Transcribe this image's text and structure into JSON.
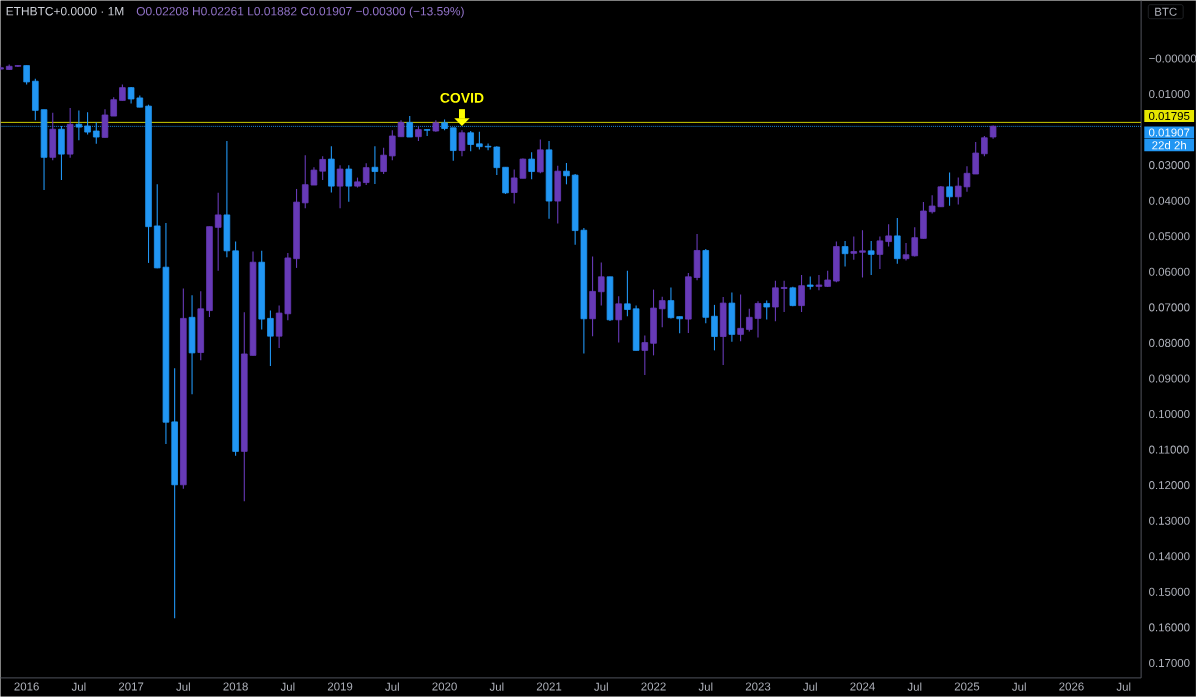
{
  "chart_data": {
    "type": "candlestick",
    "title": "ETHBTC+0.0000 · 1M",
    "subtitle": "O0.02208 H0.02261 L0.01882 C0.01907 −0.00300 (−13.59%)",
    "ylabel": "BTC",
    "x": [
      "2015-10",
      "2015-11",
      "2015-12",
      "2016-01",
      "2016-02",
      "2016-03",
      "2016-04",
      "2016-05",
      "2016-06",
      "2016-07",
      "2016-08",
      "2016-09",
      "2016-10",
      "2016-11",
      "2016-12",
      "2017-01",
      "2017-02",
      "2017-03",
      "2017-04",
      "2017-05",
      "2017-06",
      "2017-07",
      "2017-08",
      "2017-09",
      "2017-10",
      "2017-11",
      "2017-12",
      "2018-01",
      "2018-02",
      "2018-03",
      "2018-04",
      "2018-05",
      "2018-06",
      "2018-07",
      "2018-08",
      "2018-09",
      "2018-10",
      "2018-11",
      "2018-12",
      "2019-01",
      "2019-02",
      "2019-03",
      "2019-04",
      "2019-05",
      "2019-06",
      "2019-07",
      "2019-08",
      "2019-09",
      "2019-10",
      "2019-11",
      "2019-12",
      "2020-01",
      "2020-02",
      "2020-03",
      "2020-04",
      "2020-05",
      "2020-06",
      "2020-07",
      "2020-08",
      "2020-09",
      "2020-10",
      "2020-11",
      "2020-12",
      "2021-01",
      "2021-02",
      "2021-03",
      "2021-04",
      "2021-05",
      "2021-06",
      "2021-07",
      "2021-08",
      "2021-09",
      "2021-10",
      "2021-11",
      "2021-12",
      "2022-01",
      "2022-02",
      "2022-03",
      "2022-04",
      "2022-05",
      "2022-06",
      "2022-07",
      "2022-08",
      "2022-09",
      "2022-10",
      "2022-11",
      "2022-12",
      "2023-01",
      "2023-02",
      "2023-03",
      "2023-04",
      "2023-05",
      "2023-06",
      "2023-07",
      "2023-08",
      "2023-09",
      "2023-10",
      "2023-11",
      "2023-12",
      "2024-01",
      "2024-02",
      "2024-03",
      "2024-04",
      "2024-05",
      "2024-06",
      "2024-07",
      "2024-08",
      "2024-09",
      "2024-10",
      "2024-11",
      "2024-12",
      "2025-01",
      "2025-02",
      "2025-03",
      "2025-04"
    ],
    "ohlc": [
      [
        0.003,
        0.0034,
        0.0019,
        0.0026
      ],
      [
        0.0031,
        0.0032,
        0.0017,
        0.0022
      ],
      [
        0.0022,
        0.0024,
        0.0019,
        0.002
      ],
      [
        0.002,
        0.0073,
        0.002,
        0.0066
      ],
      [
        0.0064,
        0.0174,
        0.0057,
        0.0146
      ],
      [
        0.0144,
        0.037,
        0.0144,
        0.0278
      ],
      [
        0.0278,
        0.0286,
        0.0153,
        0.0199
      ],
      [
        0.0199,
        0.0342,
        0.019,
        0.0269
      ],
      [
        0.0269,
        0.0279,
        0.0139,
        0.0185
      ],
      [
        0.0185,
        0.023,
        0.0146,
        0.0193
      ],
      [
        0.019,
        0.0214,
        0.0151,
        0.0207
      ],
      [
        0.0204,
        0.024,
        0.018,
        0.0221
      ],
      [
        0.0222,
        0.0222,
        0.0143,
        0.0159
      ],
      [
        0.0162,
        0.0162,
        0.0109,
        0.0116
      ],
      [
        0.0118,
        0.0118,
        0.0073,
        0.0082
      ],
      [
        0.0082,
        0.0127,
        0.008,
        0.0114
      ],
      [
        0.0111,
        0.0137,
        0.0104,
        0.0137
      ],
      [
        0.0134,
        0.0575,
        0.013,
        0.0473
      ],
      [
        0.0471,
        0.059,
        0.0354,
        0.0589
      ],
      [
        0.0587,
        0.1084,
        0.0463,
        0.1023
      ],
      [
        0.1022,
        0.1574,
        0.0871,
        0.1199
      ],
      [
        0.1199,
        0.121,
        0.0647,
        0.0731
      ],
      [
        0.0728,
        0.0944,
        0.0666,
        0.0828
      ],
      [
        0.0827,
        0.0849,
        0.0655,
        0.0704
      ],
      [
        0.0709,
        0.0727,
        0.0473,
        0.0473
      ],
      [
        0.0475,
        0.0597,
        0.0378,
        0.044
      ],
      [
        0.044,
        0.0559,
        0.0232,
        0.0541
      ],
      [
        0.0541,
        0.1117,
        0.0515,
        0.1105
      ],
      [
        0.1105,
        0.1245,
        0.0714,
        0.0831
      ],
      [
        0.0835,
        0.0835,
        0.0543,
        0.0573
      ],
      [
        0.0573,
        0.0762,
        0.0541,
        0.0733
      ],
      [
        0.0731,
        0.0865,
        0.0709,
        0.0781
      ],
      [
        0.0781,
        0.0814,
        0.0695,
        0.0716
      ],
      [
        0.0718,
        0.0736,
        0.0547,
        0.0561
      ],
      [
        0.0563,
        0.0589,
        0.0367,
        0.0404
      ],
      [
        0.0406,
        0.0421,
        0.0272,
        0.0355
      ],
      [
        0.0356,
        0.0356,
        0.0306,
        0.0314
      ],
      [
        0.0317,
        0.0342,
        0.0275,
        0.0284
      ],
      [
        0.0283,
        0.0377,
        0.0247,
        0.0359
      ],
      [
        0.0359,
        0.0421,
        0.03,
        0.0311
      ],
      [
        0.0311,
        0.0403,
        0.03,
        0.0359
      ],
      [
        0.0359,
        0.0363,
        0.0335,
        0.0347
      ],
      [
        0.0349,
        0.0356,
        0.0295,
        0.0307
      ],
      [
        0.0306,
        0.0353,
        0.0247,
        0.0318
      ],
      [
        0.0318,
        0.0325,
        0.0251,
        0.0272
      ],
      [
        0.0274,
        0.0286,
        0.0202,
        0.0218
      ],
      [
        0.022,
        0.022,
        0.0174,
        0.018
      ],
      [
        0.018,
        0.0221,
        0.0162,
        0.0221
      ],
      [
        0.022,
        0.0232,
        0.0192,
        0.02
      ],
      [
        0.02,
        0.0218,
        0.02,
        0.0202
      ],
      [
        0.0204,
        0.0206,
        0.0174,
        0.0181
      ],
      [
        0.0181,
        0.0202,
        0.0172,
        0.0197
      ],
      [
        0.0195,
        0.0288,
        0.0195,
        0.0259
      ],
      [
        0.0259,
        0.0275,
        0.0202,
        0.0209
      ],
      [
        0.0209,
        0.0261,
        0.0204,
        0.0242
      ],
      [
        0.024,
        0.0256,
        0.0206,
        0.0248
      ],
      [
        0.0247,
        0.0258,
        0.0239,
        0.0249
      ],
      [
        0.0249,
        0.0328,
        0.0247,
        0.0307
      ],
      [
        0.0306,
        0.0381,
        0.0306,
        0.0378
      ],
      [
        0.0377,
        0.0408,
        0.0312,
        0.0336
      ],
      [
        0.0337,
        0.0337,
        0.0281,
        0.0283
      ],
      [
        0.0283,
        0.034,
        0.0264,
        0.0318
      ],
      [
        0.0319,
        0.0323,
        0.0228,
        0.0257
      ],
      [
        0.0257,
        0.0451,
        0.0232,
        0.0401
      ],
      [
        0.0401,
        0.0464,
        0.0302,
        0.0317
      ],
      [
        0.0317,
        0.0354,
        0.0294,
        0.033
      ],
      [
        0.0328,
        0.0524,
        0.0325,
        0.0484
      ],
      [
        0.0483,
        0.083,
        0.0477,
        0.0732
      ],
      [
        0.0732,
        0.0781,
        0.0557,
        0.0655
      ],
      [
        0.0656,
        0.0695,
        0.0574,
        0.0614
      ],
      [
        0.0614,
        0.0738,
        0.0614,
        0.0735
      ],
      [
        0.0735,
        0.0799,
        0.0669,
        0.069
      ],
      [
        0.069,
        0.0725,
        0.0597,
        0.0706
      ],
      [
        0.0704,
        0.0821,
        0.0695,
        0.0821
      ],
      [
        0.0821,
        0.089,
        0.0779,
        0.0799
      ],
      [
        0.0801,
        0.0835,
        0.065,
        0.0702
      ],
      [
        0.0704,
        0.0756,
        0.067,
        0.0681
      ],
      [
        0.0681,
        0.0731,
        0.0644,
        0.0729
      ],
      [
        0.0726,
        0.0773,
        0.0726,
        0.0732
      ],
      [
        0.0733,
        0.0772,
        0.0603,
        0.0614
      ],
      [
        0.0616,
        0.0624,
        0.0494,
        0.054
      ],
      [
        0.054,
        0.0745,
        0.0536,
        0.0728
      ],
      [
        0.0725,
        0.0821,
        0.0693,
        0.0782
      ],
      [
        0.0782,
        0.0862,
        0.0671,
        0.0688
      ],
      [
        0.0688,
        0.0797,
        0.0658,
        0.0776
      ],
      [
        0.0776,
        0.0795,
        0.0664,
        0.0759
      ],
      [
        0.0762,
        0.0768,
        0.0704,
        0.0728
      ],
      [
        0.0731,
        0.0785,
        0.0683,
        0.0689
      ],
      [
        0.0689,
        0.0734,
        0.0681,
        0.0699
      ],
      [
        0.0699,
        0.0739,
        0.0625,
        0.0645
      ],
      [
        0.0647,
        0.0713,
        0.0625,
        0.0644
      ],
      [
        0.0645,
        0.0697,
        0.0642,
        0.0695
      ],
      [
        0.0695,
        0.0713,
        0.0609,
        0.0639
      ],
      [
        0.0637,
        0.065,
        0.0613,
        0.0641
      ],
      [
        0.0641,
        0.0652,
        0.0609,
        0.0637
      ],
      [
        0.0641,
        0.0643,
        0.0597,
        0.0623
      ],
      [
        0.0626,
        0.0629,
        0.0515,
        0.0529
      ],
      [
        0.0529,
        0.0585,
        0.0513,
        0.0549
      ],
      [
        0.0548,
        0.0566,
        0.0501,
        0.0543
      ],
      [
        0.0545,
        0.0616,
        0.0483,
        0.0541
      ],
      [
        0.0541,
        0.0609,
        0.0513,
        0.0551
      ],
      [
        0.0551,
        0.0592,
        0.0501,
        0.0513
      ],
      [
        0.0515,
        0.0529,
        0.0466,
        0.0499
      ],
      [
        0.0499,
        0.0577,
        0.0449,
        0.0563
      ],
      [
        0.0563,
        0.0568,
        0.0519,
        0.0552
      ],
      [
        0.0555,
        0.0557,
        0.0475,
        0.0504
      ],
      [
        0.0506,
        0.0506,
        0.0404,
        0.0429
      ],
      [
        0.0431,
        0.0436,
        0.0385,
        0.0415
      ],
      [
        0.0417,
        0.0418,
        0.0359,
        0.0361
      ],
      [
        0.0361,
        0.0414,
        0.0321,
        0.0389
      ],
      [
        0.0389,
        0.0411,
        0.0335,
        0.0359
      ],
      [
        0.0361,
        0.0375,
        0.0303,
        0.0323
      ],
      [
        0.0325,
        0.0325,
        0.0235,
        0.0266
      ],
      [
        0.0268,
        0.0275,
        0.0218,
        0.0223
      ],
      [
        0.02208,
        0.02261,
        0.01882,
        0.01907
      ]
    ],
    "colors": [
      "#673ab7",
      "#673ab7",
      "#673ab7",
      "#2196f3",
      "#2196f3",
      "#2196f3",
      "#673ab7",
      "#2196f3",
      "#673ab7",
      "#2196f3",
      "#2196f3",
      "#2196f3",
      "#673ab7",
      "#673ab7",
      "#673ab7",
      "#2196f3",
      "#2196f3",
      "#2196f3",
      "#2196f3",
      "#2196f3",
      "#2196f3",
      "#673ab7",
      "#2196f3",
      "#673ab7",
      "#673ab7",
      "#673ab7",
      "#2196f3",
      "#2196f3",
      "#673ab7",
      "#673ab7",
      "#2196f3",
      "#2196f3",
      "#673ab7",
      "#673ab7",
      "#673ab7",
      "#673ab7",
      "#673ab7",
      "#673ab7",
      "#2196f3",
      "#673ab7",
      "#2196f3",
      "#673ab7",
      "#673ab7",
      "#2196f3",
      "#673ab7",
      "#673ab7",
      "#673ab7",
      "#2196f3",
      "#673ab7",
      "#2196f3",
      "#673ab7",
      "#2196f3",
      "#2196f3",
      "#673ab7",
      "#2196f3",
      "#2196f3",
      "#2196f3",
      "#2196f3",
      "#2196f3",
      "#673ab7",
      "#673ab7",
      "#2196f3",
      "#673ab7",
      "#2196f3",
      "#673ab7",
      "#2196f3",
      "#2196f3",
      "#2196f3",
      "#673ab7",
      "#673ab7",
      "#2196f3",
      "#673ab7",
      "#2196f3",
      "#2196f3",
      "#673ab7",
      "#673ab7",
      "#673ab7",
      "#2196f3",
      "#2196f3",
      "#673ab7",
      "#673ab7",
      "#2196f3",
      "#2196f3",
      "#673ab7",
      "#2196f3",
      "#673ab7",
      "#673ab7",
      "#673ab7",
      "#2196f3",
      "#673ab7",
      "#673ab7",
      "#2196f3",
      "#673ab7",
      "#2196f3",
      "#673ab7",
      "#673ab7",
      "#673ab7",
      "#2196f3",
      "#673ab7",
      "#673ab7",
      "#2196f3",
      "#673ab7",
      "#673ab7",
      "#2196f3",
      "#673ab7",
      "#673ab7",
      "#673ab7",
      "#673ab7",
      "#673ab7",
      "#2196f3",
      "#673ab7",
      "#673ab7",
      "#673ab7",
      "#673ab7",
      "#673ab7"
    ],
    "xlim": [
      "2015-10",
      "2026-09"
    ],
    "xticks": [
      {
        "value": "2016-01",
        "label": "2016"
      },
      {
        "value": "2016-07",
        "label": "Jul"
      },
      {
        "value": "2017-01",
        "label": "2017"
      },
      {
        "value": "2017-07",
        "label": "Jul"
      },
      {
        "value": "2018-01",
        "label": "2018"
      },
      {
        "value": "2018-07",
        "label": "Jul"
      },
      {
        "value": "2019-01",
        "label": "2019"
      },
      {
        "value": "2019-07",
        "label": "Jul"
      },
      {
        "value": "2020-01",
        "label": "2020"
      },
      {
        "value": "2020-07",
        "label": "Jul"
      },
      {
        "value": "2021-01",
        "label": "2021"
      },
      {
        "value": "2021-07",
        "label": "Jul"
      },
      {
        "value": "2022-01",
        "label": "2022"
      },
      {
        "value": "2022-07",
        "label": "Jul"
      },
      {
        "value": "2023-01",
        "label": "2023"
      },
      {
        "value": "2023-07",
        "label": "Jul"
      },
      {
        "value": "2024-01",
        "label": "2024"
      },
      {
        "value": "2024-07",
        "label": "Jul"
      },
      {
        "value": "2025-01",
        "label": "2025"
      },
      {
        "value": "2025-07",
        "label": "Jul"
      },
      {
        "value": "2026-01",
        "label": "2026"
      },
      {
        "value": "2026-07",
        "label": "Jul"
      }
    ],
    "ylim": [
      0.1742,
      -0.0163
    ],
    "yticks": [
      {
        "value": 0,
        "label": "−0.00000"
      },
      {
        "value": 0.01,
        "label": "0.01000"
      },
      {
        "value": 0.03,
        "label": "0.03000"
      },
      {
        "value": 0.04,
        "label": "0.04000"
      },
      {
        "value": 0.05,
        "label": "0.05000"
      },
      {
        "value": 0.06,
        "label": "0.06000"
      },
      {
        "value": 0.07,
        "label": "0.07000"
      },
      {
        "value": 0.08,
        "label": "0.08000"
      },
      {
        "value": 0.09,
        "label": "0.09000"
      },
      {
        "value": 0.1,
        "label": "0.10000"
      },
      {
        "value": 0.11,
        "label": "0.11000"
      },
      {
        "value": 0.12,
        "label": "0.12000"
      },
      {
        "value": 0.13,
        "label": "0.13000"
      },
      {
        "value": 0.14,
        "label": "0.14000"
      },
      {
        "value": 0.15,
        "label": "0.15000"
      },
      {
        "value": 0.16,
        "label": "0.16000"
      },
      {
        "value": 0.17,
        "label": "0.17000"
      }
    ],
    "ref_lines": [
      {
        "axis": "y",
        "value": 0.01795,
        "label": "0.01795",
        "color": "#e6e600",
        "line_style": "solid"
      },
      {
        "axis": "y",
        "value": 0.01907,
        "label": "0.01907",
        "color": "#2196f3",
        "line_style": "dotted"
      }
    ],
    "annotations": [
      {
        "text": "COVID",
        "x": "2020-03",
        "y": 0.0202
      },
      "22d 2h"
    ]
  }
}
